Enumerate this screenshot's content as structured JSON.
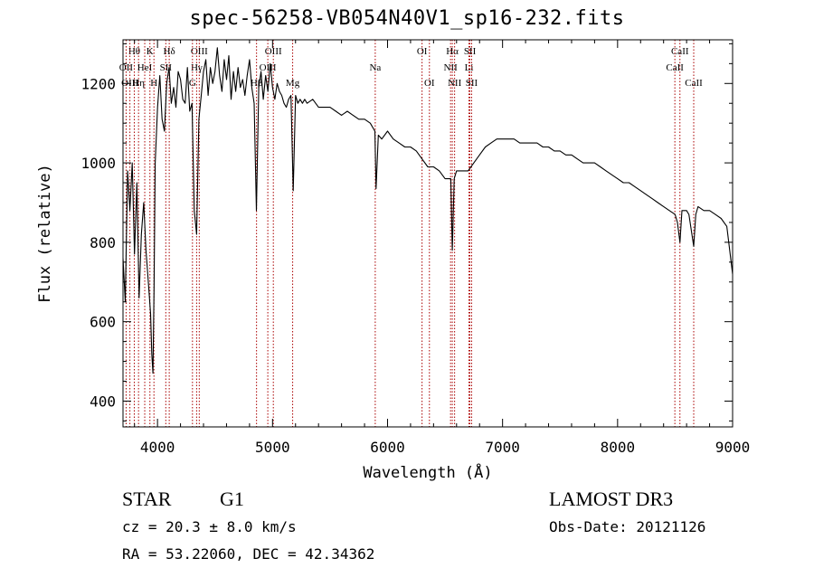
{
  "chart_data": {
    "type": "line",
    "title": "spec-56258-VB054N40V1_sp16-232.fits",
    "xlabel": "Wavelength (Å)",
    "ylabel": "Flux (relative)",
    "xlim": [
      3700,
      9000
    ],
    "ylim": [
      335,
      1310
    ],
    "xticks": [
      4000,
      5000,
      6000,
      7000,
      8000,
      9000
    ],
    "xtick_labels": [
      "4000",
      "5000",
      "6000",
      "7000",
      "8000",
      "9000"
    ],
    "yticks": [
      400,
      600,
      800,
      1000,
      1200
    ],
    "ytick_labels": [
      "400",
      "600",
      "800",
      "1000",
      "1200"
    ],
    "line_color": "#000000",
    "marker_color": "#aa0000",
    "spectrum": {
      "x": [
        3700,
        3720,
        3740,
        3760,
        3780,
        3800,
        3820,
        3840,
        3860,
        3880,
        3900,
        3920,
        3940,
        3950,
        3960,
        3970,
        3980,
        4000,
        4020,
        4040,
        4060,
        4080,
        4100,
        4120,
        4140,
        4160,
        4180,
        4200,
        4220,
        4240,
        4260,
        4280,
        4300,
        4320,
        4340,
        4360,
        4380,
        4400,
        4420,
        4440,
        4460,
        4480,
        4500,
        4520,
        4540,
        4560,
        4580,
        4600,
        4620,
        4640,
        4660,
        4680,
        4700,
        4720,
        4740,
        4760,
        4780,
        4800,
        4820,
        4840,
        4860,
        4880,
        4900,
        4920,
        4940,
        4960,
        4980,
        5000,
        5020,
        5040,
        5060,
        5080,
        5100,
        5120,
        5140,
        5160,
        5180,
        5200,
        5220,
        5240,
        5260,
        5280,
        5300,
        5350,
        5400,
        5450,
        5500,
        5550,
        5600,
        5650,
        5700,
        5750,
        5800,
        5850,
        5890,
        5900,
        5920,
        5950,
        6000,
        6050,
        6100,
        6150,
        6200,
        6250,
        6300,
        6350,
        6400,
        6450,
        6500,
        6530,
        6550,
        6563,
        6580,
        6600,
        6650,
        6700,
        6750,
        6800,
        6850,
        6900,
        6950,
        7000,
        7050,
        7100,
        7150,
        7200,
        7250,
        7300,
        7350,
        7400,
        7450,
        7500,
        7550,
        7600,
        7650,
        7700,
        7750,
        7800,
        7850,
        7900,
        7950,
        8000,
        8050,
        8100,
        8150,
        8200,
        8250,
        8300,
        8350,
        8400,
        8450,
        8500,
        8520,
        8542,
        8560,
        8600,
        8620,
        8662,
        8680,
        8700,
        8750,
        8800,
        8850,
        8900,
        8950,
        9000
      ],
      "y": [
        760,
        650,
        980,
        880,
        1000,
        770,
        950,
        660,
        820,
        900,
        780,
        700,
        620,
        520,
        470,
        680,
        1000,
        1140,
        1220,
        1110,
        1080,
        1200,
        1240,
        1150,
        1190,
        1140,
        1230,
        1210,
        1160,
        1150,
        1240,
        1130,
        1150,
        880,
        820,
        1110,
        1170,
        1230,
        1260,
        1170,
        1240,
        1200,
        1230,
        1290,
        1220,
        1180,
        1260,
        1210,
        1270,
        1160,
        1230,
        1180,
        1240,
        1190,
        1210,
        1170,
        1220,
        1260,
        1190,
        1150,
        880,
        1190,
        1230,
        1160,
        1220,
        1180,
        1250,
        1190,
        1160,
        1200,
        1180,
        1170,
        1150,
        1140,
        1160,
        1170,
        930,
        1170,
        1150,
        1160,
        1150,
        1160,
        1150,
        1160,
        1140,
        1140,
        1140,
        1130,
        1120,
        1130,
        1120,
        1110,
        1110,
        1100,
        1080,
        935,
        1070,
        1060,
        1080,
        1060,
        1050,
        1040,
        1040,
        1030,
        1010,
        990,
        990,
        980,
        960,
        960,
        960,
        780,
        960,
        980,
        980,
        980,
        1000,
        1020,
        1040,
        1050,
        1060,
        1060,
        1060,
        1060,
        1050,
        1050,
        1050,
        1050,
        1040,
        1040,
        1030,
        1030,
        1020,
        1020,
        1010,
        1000,
        1000,
        1000,
        990,
        980,
        970,
        960,
        950,
        950,
        940,
        930,
        920,
        910,
        900,
        890,
        880,
        870,
        850,
        800,
        880,
        880,
        870,
        790,
        870,
        890,
        880,
        880,
        870,
        860,
        840,
        720
      ]
    },
    "lines": [
      {
        "label": "Hθ",
        "wave": 3798,
        "row": 0
      },
      {
        "label": "OII",
        "wave": 3727,
        "row": 1
      },
      {
        "label": "OIII",
        "wave": 3760,
        "row": 2
      },
      {
        "label": "Hη",
        "wave": 3835,
        "row": 2
      },
      {
        "label": "HeI",
        "wave": 3889,
        "row": 1
      },
      {
        "label": "K",
        "wave": 3934,
        "row": 0
      },
      {
        "label": "SII",
        "wave": 4072,
        "row": 1
      },
      {
        "label": "H",
        "wave": 3969,
        "row": 2
      },
      {
        "label": "Hδ",
        "wave": 4102,
        "row": 0
      },
      {
        "label": "OIII",
        "wave": 4363,
        "row": 0
      },
      {
        "label": "Hγ",
        "wave": 4340,
        "row": 1
      },
      {
        "label": "G",
        "wave": 4304,
        "row": 2
      },
      {
        "label": "OIII",
        "wave": 5007,
        "row": 0
      },
      {
        "label": "OIII",
        "wave": 4959,
        "row": 1
      },
      {
        "label": "Hβ",
        "wave": 4861,
        "row": 2
      },
      {
        "label": "Mg",
        "wave": 5175,
        "row": 2
      },
      {
        "label": "Na",
        "wave": 5893,
        "row": 1
      },
      {
        "label": "OI",
        "wave": 6300,
        "row": 0
      },
      {
        "label": "OI",
        "wave": 6364,
        "row": 2
      },
      {
        "label": "Hα",
        "wave": 6563,
        "row": 0
      },
      {
        "label": "SII",
        "wave": 6716,
        "row": 0
      },
      {
        "label": "NII",
        "wave": 6548,
        "row": 1
      },
      {
        "label": "Li",
        "wave": 6708,
        "row": 1
      },
      {
        "label": "NII",
        "wave": 6583,
        "row": 2
      },
      {
        "label": "SII",
        "wave": 6731,
        "row": 2
      },
      {
        "label": "CaII",
        "wave": 8542,
        "row": 0
      },
      {
        "label": "CaII",
        "wave": 8498,
        "row": 1
      },
      {
        "label": "CaII",
        "wave": 8662,
        "row": 2
      }
    ]
  },
  "info": {
    "object_type": "STAR",
    "object_class": "G1",
    "survey": "LAMOST DR3",
    "cz": "cz = 20.3 ± 8.0 km/s",
    "obs_date": "Obs-Date: 20121126",
    "radec": "RA =  53.22060, DEC =  42.34362"
  }
}
